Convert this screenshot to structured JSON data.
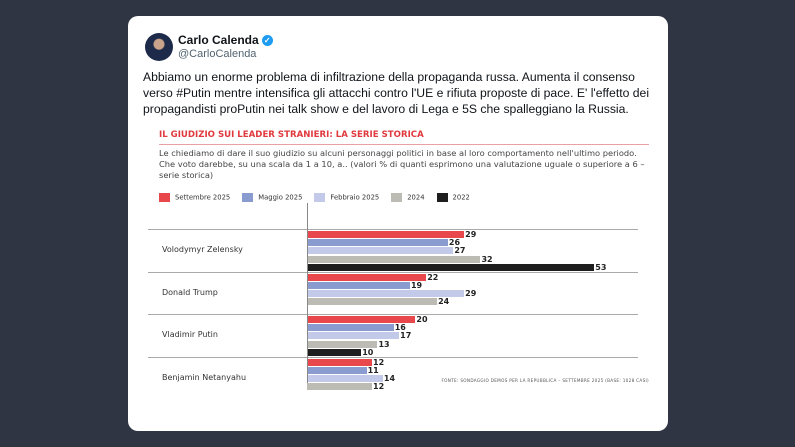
{
  "tweet": {
    "author": "Carlo Calenda",
    "handle": "@CarloCalenda",
    "verified_icon": "✓",
    "text": "Abbiamo un enorme problema di infiltrazione della propaganda russa. Aumenta il consenso verso #Putin mentre intensifica gli attacchi contro l'UE e rifiuta proposte di pace. E' l'effetto dei propagandisti proPutin nei talk show e del lavoro di Lega e 5S che spalleggiano la Russia."
  },
  "chart_data": {
    "type": "bar",
    "orientation": "horizontal",
    "title": "IL GIUDIZIO SUI LEADER STRANIERI: LA SERIE STORICA",
    "subtitle": "Le chiediamo di dare il suo giudizio su alcuni personaggi politici in base al loro comportamento nell'ultimo periodo. Che voto darebbe, su una scala da 1 a 10, a.. (valori % di quanti esprimono una valutazione uguale o superiore a 6 – serie storica)",
    "source": "FONTE: SONDAGGIO DEMOS PER LA REPUBBLICA – SETTEMBRE 2025 (BASE: 1028 CASI)",
    "legend_placement": "top-left",
    "series": [
      {
        "name": "Settembre 2025",
        "color": "#e8474b"
      },
      {
        "name": "Maggio 2025",
        "color": "#8a9bd0"
      },
      {
        "name": "Febbraio 2025",
        "color": "#c3c9e8"
      },
      {
        "name": "2024",
        "color": "#bcbcb4"
      },
      {
        "name": "2022",
        "color": "#1e1e1e"
      }
    ],
    "categories": [
      "Volodymyr Zelensky",
      "Donald Trump",
      "Vladimir Putin",
      "Benjamin Netanyahu"
    ],
    "values": [
      [
        29,
        26,
        27,
        32,
        53
      ],
      [
        22,
        19,
        29,
        24,
        null
      ],
      [
        20,
        16,
        17,
        13,
        10
      ],
      [
        12,
        11,
        14,
        12,
        null
      ]
    ],
    "xlim": [
      0,
      53
    ]
  }
}
